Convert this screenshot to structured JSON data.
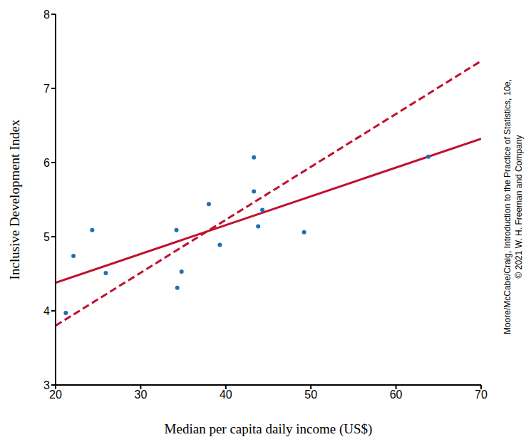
{
  "chart_data": {
    "type": "scatter",
    "x_label": "Median per capita daily income (US$)",
    "y_label": "Inclusive Development Index",
    "annotations": [
      "Moore/McCabe/Craig, Introduction to the Practice of Statistics, 10e,",
      "© 2021 W. H. Freeman and Company"
    ],
    "xlim": [
      20,
      70
    ],
    "xticks": [
      20,
      30,
      40,
      50,
      60,
      70
    ],
    "ylim": [
      3,
      8
    ],
    "yticks": [
      3,
      4,
      5,
      6,
      7,
      8
    ],
    "grid": false,
    "series": [
      {
        "type": "scatter",
        "color": "#1f6fb5",
        "marker": "circle",
        "x": [
          21.2,
          22.1,
          24.3,
          25.9,
          34.2,
          34.3,
          34.8,
          38.0,
          39.3,
          43.3,
          43.3,
          43.8,
          44.3,
          49.2,
          63.8
        ],
        "values": [
          3.97,
          4.74,
          5.09,
          4.51,
          5.09,
          4.31,
          4.53,
          5.44,
          4.89,
          6.07,
          5.61,
          5.14,
          5.36,
          5.06,
          6.08
        ]
      },
      {
        "type": "line",
        "color": "#c0102e",
        "line_style": "solid",
        "x": [
          20,
          70
        ],
        "values": [
          4.38,
          6.32
        ]
      },
      {
        "type": "line",
        "color": "#c0102e",
        "line_style": "dashed",
        "x": [
          20,
          70
        ],
        "values": [
          3.8,
          7.37
        ]
      }
    ]
  }
}
